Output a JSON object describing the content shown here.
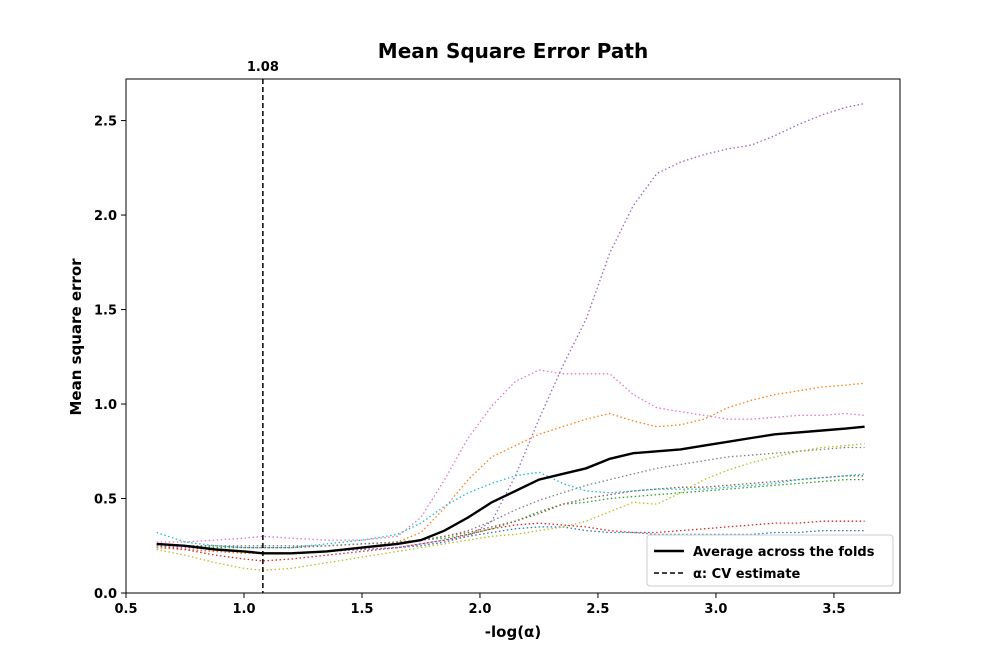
{
  "chart_data": {
    "type": "line",
    "title": "Mean Square Error Path",
    "xlabel": "-log(α)",
    "ylabel": "Mean square error",
    "xlim": [
      0.5,
      3.78
    ],
    "ylim": [
      0,
      2.72
    ],
    "xticks": [
      0.5,
      1.0,
      1.5,
      2.0,
      2.5,
      3.0,
      3.5
    ],
    "xtick_labels": [
      "0.5",
      "1.0",
      "1.5",
      "2.0",
      "2.5",
      "3.0",
      "3.5"
    ],
    "yticks": [
      0,
      0.5,
      1.0,
      1.5,
      2.0,
      2.5
    ],
    "ytick_labels": [
      "0.0",
      "0.5",
      "1.0",
      "1.5",
      "2.0",
      "2.5"
    ],
    "grid": false,
    "legend_position": "bottom-right",
    "cv_alpha": {
      "x": 1.08,
      "label": "1.08"
    },
    "x": [
      0.63,
      0.75,
      0.88,
      1.0,
      1.08,
      1.2,
      1.35,
      1.5,
      1.65,
      1.75,
      1.85,
      1.95,
      2.05,
      2.15,
      2.25,
      2.35,
      2.45,
      2.55,
      2.65,
      2.75,
      2.85,
      2.95,
      3.05,
      3.15,
      3.25,
      3.35,
      3.45,
      3.55,
      3.63
    ],
    "folds": [
      {
        "color": "#1f77b4",
        "values": [
          0.24,
          0.23,
          0.22,
          0.21,
          0.21,
          0.21,
          0.22,
          0.23,
          0.24,
          0.25,
          0.27,
          0.3,
          0.32,
          0.34,
          0.35,
          0.35,
          0.33,
          0.32,
          0.32,
          0.31,
          0.31,
          0.31,
          0.31,
          0.31,
          0.32,
          0.32,
          0.33,
          0.33,
          0.33
        ]
      },
      {
        "color": "#ff7f0e",
        "values": [
          0.24,
          0.23,
          0.22,
          0.21,
          0.21,
          0.21,
          0.22,
          0.24,
          0.27,
          0.32,
          0.45,
          0.6,
          0.72,
          0.78,
          0.84,
          0.88,
          0.92,
          0.95,
          0.91,
          0.88,
          0.89,
          0.92,
          0.98,
          1.02,
          1.05,
          1.07,
          1.09,
          1.1,
          1.11
        ]
      },
      {
        "color": "#2ca02c",
        "values": [
          0.26,
          0.25,
          0.24,
          0.24,
          0.24,
          0.24,
          0.25,
          0.26,
          0.27,
          0.28,
          0.29,
          0.31,
          0.34,
          0.38,
          0.43,
          0.47,
          0.48,
          0.5,
          0.51,
          0.52,
          0.53,
          0.54,
          0.55,
          0.56,
          0.57,
          0.58,
          0.59,
          0.6,
          0.6
        ]
      },
      {
        "color": "#d62728",
        "values": [
          0.25,
          0.23,
          0.2,
          0.18,
          0.17,
          0.18,
          0.2,
          0.22,
          0.24,
          0.26,
          0.28,
          0.31,
          0.34,
          0.36,
          0.37,
          0.36,
          0.35,
          0.33,
          0.32,
          0.32,
          0.33,
          0.34,
          0.35,
          0.36,
          0.37,
          0.37,
          0.38,
          0.38,
          0.38
        ]
      },
      {
        "color": "#9467bd",
        "values": [
          0.25,
          0.24,
          0.23,
          0.22,
          0.21,
          0.21,
          0.22,
          0.23,
          0.24,
          0.26,
          0.28,
          0.3,
          0.38,
          0.62,
          0.92,
          1.2,
          1.45,
          1.8,
          2.05,
          2.22,
          2.28,
          2.32,
          2.35,
          2.37,
          2.42,
          2.48,
          2.53,
          2.57,
          2.59
        ]
      },
      {
        "color": "#8c564b",
        "values": [
          0.26,
          0.25,
          0.25,
          0.24,
          0.24,
          0.24,
          0.25,
          0.26,
          0.27,
          0.28,
          0.3,
          0.32,
          0.35,
          0.38,
          0.42,
          0.47,
          0.5,
          0.52,
          0.54,
          0.55,
          0.56,
          0.56,
          0.57,
          0.58,
          0.59,
          0.6,
          0.61,
          0.62,
          0.62
        ]
      },
      {
        "color": "#e377c2",
        "values": [
          0.27,
          0.27,
          0.28,
          0.29,
          0.3,
          0.29,
          0.28,
          0.28,
          0.3,
          0.4,
          0.6,
          0.82,
          0.99,
          1.12,
          1.18,
          1.16,
          1.16,
          1.16,
          1.05,
          0.98,
          0.96,
          0.94,
          0.92,
          0.92,
          0.93,
          0.94,
          0.94,
          0.95,
          0.94
        ]
      },
      {
        "color": "#7f7f7f",
        "values": [
          0.25,
          0.25,
          0.25,
          0.25,
          0.25,
          0.25,
          0.25,
          0.26,
          0.27,
          0.28,
          0.3,
          0.33,
          0.38,
          0.44,
          0.49,
          0.53,
          0.57,
          0.6,
          0.63,
          0.66,
          0.68,
          0.7,
          0.72,
          0.73,
          0.74,
          0.75,
          0.76,
          0.77,
          0.77
        ]
      },
      {
        "color": "#bcbd22",
        "values": [
          0.23,
          0.2,
          0.16,
          0.13,
          0.12,
          0.13,
          0.16,
          0.19,
          0.22,
          0.24,
          0.26,
          0.28,
          0.3,
          0.31,
          0.33,
          0.35,
          0.38,
          0.43,
          0.48,
          0.47,
          0.53,
          0.6,
          0.65,
          0.69,
          0.72,
          0.75,
          0.77,
          0.78,
          0.79
        ]
      },
      {
        "color": "#17becf",
        "values": [
          0.32,
          0.27,
          0.25,
          0.24,
          0.24,
          0.24,
          0.26,
          0.28,
          0.31,
          0.37,
          0.46,
          0.53,
          0.58,
          0.62,
          0.64,
          0.58,
          0.54,
          0.53,
          0.54,
          0.55,
          0.55,
          0.55,
          0.56,
          0.57,
          0.58,
          0.6,
          0.61,
          0.62,
          0.63
        ]
      }
    ],
    "average": {
      "name": "Average across the folds",
      "color": "#000000",
      "values": [
        0.26,
        0.25,
        0.23,
        0.22,
        0.21,
        0.21,
        0.22,
        0.24,
        0.26,
        0.28,
        0.33,
        0.4,
        0.48,
        0.54,
        0.6,
        0.63,
        0.66,
        0.71,
        0.74,
        0.75,
        0.76,
        0.78,
        0.8,
        0.82,
        0.84,
        0.85,
        0.86,
        0.87,
        0.88
      ]
    },
    "legend": [
      {
        "label": "Average across the folds",
        "style": "solid"
      },
      {
        "label": "α: CV estimate",
        "style": "dashed"
      }
    ]
  }
}
